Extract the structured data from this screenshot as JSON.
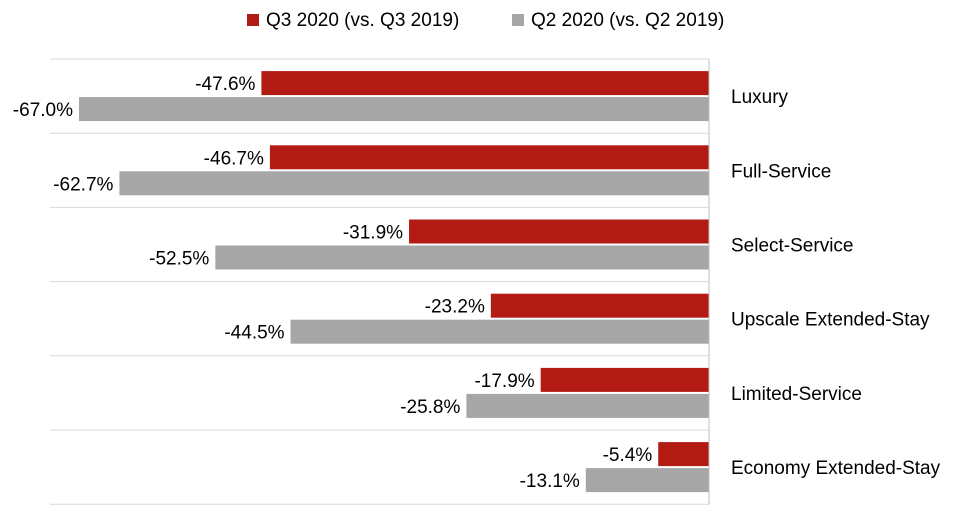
{
  "chart_data": {
    "type": "bar",
    "orientation": "horizontal",
    "categories": [
      "Luxury",
      "Full-Service",
      "Select-Service",
      "Upscale Extended-Stay",
      "Limited-Service",
      "Economy Extended-Stay"
    ],
    "series": [
      {
        "name": "Q3 2020 (vs. Q3 2019)",
        "color": "#b11b14",
        "values": [
          -47.6,
          -46.7,
          -31.9,
          -23.2,
          -17.9,
          -5.4
        ],
        "labels": [
          "-47.6%",
          "-46.7%",
          "-31.9%",
          "-23.2%",
          "-17.9%",
          "-5.4%"
        ]
      },
      {
        "name": "Q2 2020 (vs. Q2 2019)",
        "color": "#a6a6a6",
        "values": [
          -67.0,
          -62.7,
          -52.5,
          -44.5,
          -25.8,
          -13.1
        ],
        "labels": [
          "-67.0%",
          "-62.7%",
          "-52.5%",
          "-44.5%",
          "-25.8%",
          "-13.1%"
        ]
      }
    ],
    "xlim": [
      -67.0,
      0
    ],
    "legend_position": "top-center",
    "grid": "horizontal separators between categories",
    "gridline_color": "#d9d9d9",
    "axis_line_color": "#bfbfbf",
    "category_label_position": "right"
  }
}
